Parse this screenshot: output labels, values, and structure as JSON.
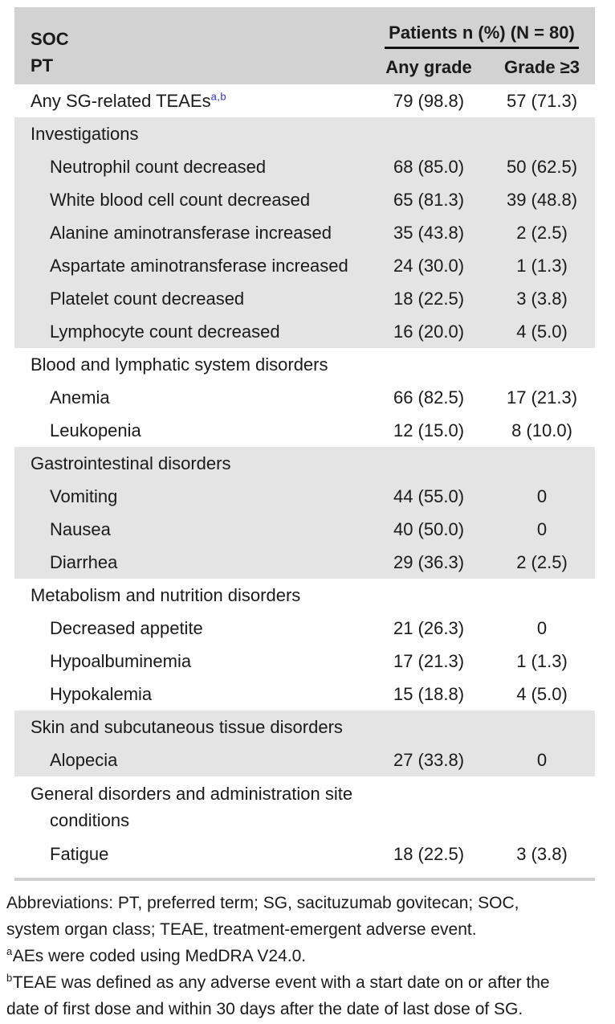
{
  "table": {
    "header": {
      "soc": "SOC",
      "pt": "PT",
      "group": "Patients n (%) (N = 80)",
      "col_any": "Any grade",
      "col_g3": "Grade ≥3"
    },
    "rows": [
      {
        "label": "Any SG-related TEAEs",
        "sup": "a,b",
        "any": "79 (98.8)",
        "g3": "57 (71.3)"
      },
      {
        "label": "Investigations"
      },
      {
        "label": "Neutrophil count decreased",
        "any": "68 (85.0)",
        "g3": "50 (62.5)"
      },
      {
        "label": "White blood cell count decreased",
        "any": "65 (81.3)",
        "g3": "39 (48.8)"
      },
      {
        "label": "Alanine aminotransferase increased",
        "any": "35 (43.8)",
        "g3": "2 (2.5)"
      },
      {
        "label": "Aspartate aminotransferase increased",
        "any": "24 (30.0)",
        "g3": "1 (1.3)"
      },
      {
        "label": "Platelet count decreased",
        "any": "18 (22.5)",
        "g3": "3 (3.8)"
      },
      {
        "label": "Lymphocyte count decreased",
        "any": "16 (20.0)",
        "g3": "4 (5.0)"
      },
      {
        "label": "Blood and lymphatic system disorders"
      },
      {
        "label": "Anemia",
        "any": "66 (82.5)",
        "g3": "17 (21.3)"
      },
      {
        "label": "Leukopenia",
        "any": "12 (15.0)",
        "g3": "8 (10.0)"
      },
      {
        "label": "Gastrointestinal disorders"
      },
      {
        "label": "Vomiting",
        "any": "44 (55.0)",
        "g3": "0"
      },
      {
        "label": "Nausea",
        "any": "40 (50.0)",
        "g3": "0"
      },
      {
        "label": "Diarrhea",
        "any": "29 (36.3)",
        "g3": "2 (2.5)"
      },
      {
        "label": "Metabolism and nutrition disorders"
      },
      {
        "label": "Decreased appetite",
        "any": "21 (26.3)",
        "g3": "0"
      },
      {
        "label": "Hypoalbuminemia",
        "any": "17 (21.3)",
        "g3": "1 (1.3)"
      },
      {
        "label": "Hypokalemia",
        "any": "15 (18.8)",
        "g3": "4 (5.0)"
      },
      {
        "label": "Skin and subcutaneous tissue disorders"
      },
      {
        "label": "Alopecia",
        "any": "27 (33.8)",
        "g3": "0"
      },
      {
        "label": "General disorders and administration site",
        "label2": "conditions"
      },
      {
        "label": "Fatigue",
        "any": "18 (22.5)",
        "g3": "3 (3.8)"
      }
    ]
  },
  "footnotes": {
    "lines": [
      {
        "sup": "",
        "text": "Abbreviations: PT, preferred term; SG, sacituzumab govitecan; SOC,"
      },
      {
        "sup": "",
        "text": "system organ class; TEAE, treatment-emergent adverse event."
      },
      {
        "sup": "a",
        "text": "AEs were coded using MedDRA V24.0."
      },
      {
        "sup": "b",
        "text": "TEAE was defined as any adverse event with a start date on or after the"
      },
      {
        "sup": "",
        "text": "date of first dose and within 30 days after the date of last dose of SG."
      }
    ]
  },
  "colors": {
    "header_bg": "#d2d2d2",
    "stripe_bg": "#e4e4e4",
    "rule_gray": "#d0d0d0",
    "header_underline": "#111111",
    "text": "#1a1a1a",
    "superscript_blue": "#2b2be0"
  }
}
